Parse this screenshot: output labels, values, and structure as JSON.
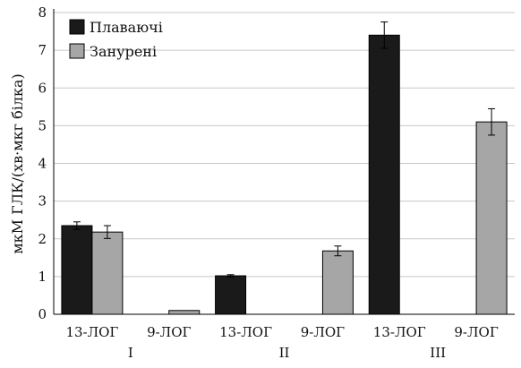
{
  "chart_data": {
    "type": "bar",
    "title": "",
    "xlabel": "",
    "ylabel": "мкМ ГЛК/(хв·мкг білка)",
    "ylim": [
      0,
      8
    ],
    "yticks": [
      0,
      1,
      2,
      3,
      4,
      5,
      6,
      7,
      8
    ],
    "grid": "horizontal",
    "legend_position": "top-left",
    "categories": [
      "13-ЛОГ",
      "9-ЛОГ",
      "13-ЛОГ",
      "9-ЛОГ",
      "13-ЛОГ",
      "9-ЛОГ"
    ],
    "groups": [
      {
        "label": "I",
        "categories": [
          "13-ЛОГ",
          "9-ЛОГ"
        ]
      },
      {
        "label": "II",
        "categories": [
          "13-ЛОГ",
          "9-ЛОГ"
        ]
      },
      {
        "label": "III",
        "categories": [
          "13-ЛОГ",
          "9-ЛОГ"
        ]
      }
    ],
    "series": [
      {
        "name": "Плаваючі",
        "color": "#1a1a1a",
        "values": [
          2.35,
          0,
          1.02,
          0,
          7.4,
          0
        ],
        "errors": [
          0.1,
          0,
          0.03,
          0,
          0.35,
          0
        ]
      },
      {
        "name": "Занурені",
        "color": "#a6a6a6",
        "values": [
          2.18,
          0.1,
          0,
          1.68,
          0,
          5.1
        ],
        "errors": [
          0.17,
          0,
          0,
          0.13,
          0,
          0.35
        ]
      }
    ]
  }
}
